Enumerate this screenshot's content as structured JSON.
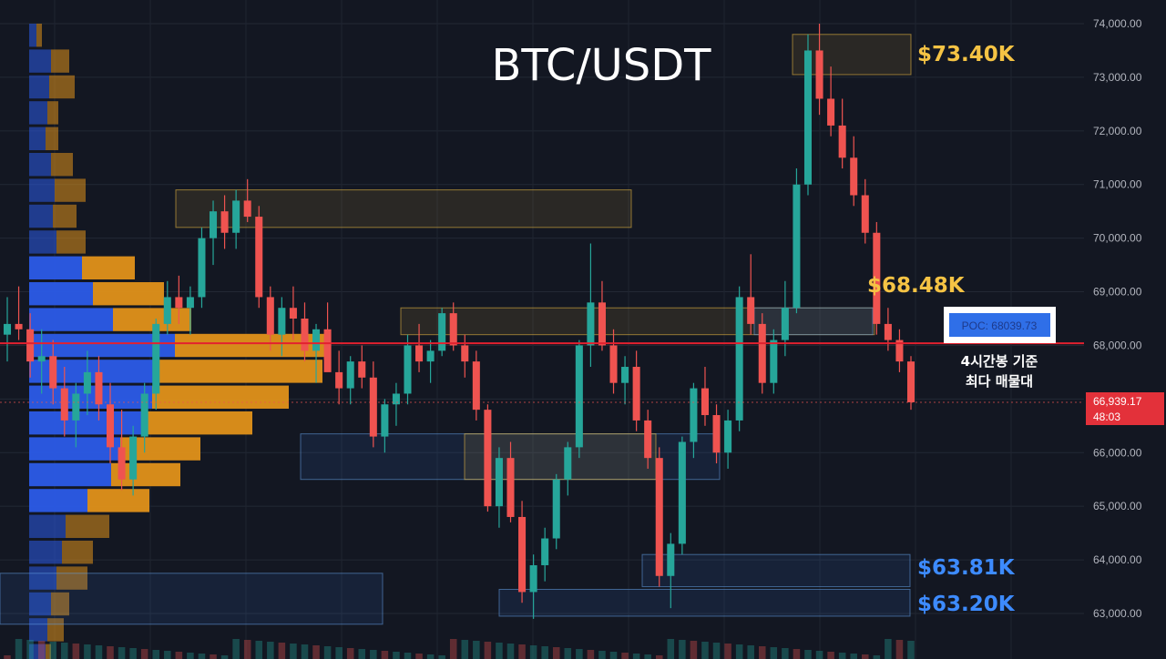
{
  "title": "BTC/USDT",
  "colors": {
    "background": "#131722",
    "bull": "#26a69a",
    "bear": "#ef5350",
    "level_gold": "#f5c344",
    "level_blue": "#3d8bff",
    "poc_line": "#e3212f",
    "vp_up": "#2b5be8",
    "vp_down": "#e0911a"
  },
  "price_axis": {
    "ticks": [
      "74,000.00",
      "73,000.00",
      "72,000.00",
      "71,000.00",
      "70,000.00",
      "69,000.00",
      "68,000.00",
      "67,000.00",
      "66,000.00",
      "65,000.00",
      "64,000.00",
      "63,000.00"
    ],
    "current_price": "66,939.17",
    "countdown": "48:03"
  },
  "levels": {
    "l1": "$73.40K",
    "l2": "$68.48K",
    "l3": "$63.81K",
    "l4": "$63.20K"
  },
  "poc": {
    "label": "POC: 68039.73",
    "note_line1": "4시간봉 기준",
    "note_line2": "최다 매물대"
  },
  "chart_data": {
    "type": "candlestick",
    "title": "BTC/USDT",
    "ylim": [
      62800,
      74200
    ],
    "y_ticks": [
      63000,
      64000,
      65000,
      66000,
      67000,
      68000,
      69000,
      70000,
      71000,
      72000,
      73000,
      74000
    ],
    "current_price": 66939.17,
    "poc": 68039.73,
    "annotated_levels": [
      73400,
      68480,
      63810,
      63200
    ],
    "candles_ohlc": [
      [
        68200,
        68900,
        67700,
        68400
      ],
      [
        68400,
        69100,
        68100,
        68300
      ],
      [
        68300,
        68600,
        67400,
        67700
      ],
      [
        67700,
        68300,
        67100,
        67800
      ],
      [
        67800,
        68100,
        66900,
        67200
      ],
      [
        67200,
        67600,
        66300,
        66600
      ],
      [
        66600,
        67300,
        66100,
        67100
      ],
      [
        67100,
        67900,
        66700,
        67500
      ],
      [
        67500,
        67800,
        66600,
        66900
      ],
      [
        66900,
        67300,
        65800,
        66100
      ],
      [
        66100,
        66800,
        65300,
        65500
      ],
      [
        65500,
        66500,
        65200,
        66300
      ],
      [
        66300,
        67300,
        66000,
        67100
      ],
      [
        67100,
        68500,
        66800,
        68400
      ],
      [
        68400,
        69200,
        68200,
        68900
      ],
      [
        68900,
        69300,
        68400,
        68700
      ],
      [
        68700,
        69100,
        68200,
        68900
      ],
      [
        68900,
        70200,
        68700,
        70000
      ],
      [
        70000,
        70700,
        69500,
        70500
      ],
      [
        70500,
        70800,
        69800,
        70100
      ],
      [
        70100,
        70900,
        69800,
        70700
      ],
      [
        70700,
        71100,
        70300,
        70400
      ],
      [
        70400,
        70600,
        68700,
        68900
      ],
      [
        68900,
        69100,
        67900,
        68200
      ],
      [
        68200,
        68900,
        67800,
        68700
      ],
      [
        68700,
        69100,
        68100,
        68500
      ],
      [
        68500,
        68800,
        67700,
        67900
      ],
      [
        67900,
        68400,
        67300,
        68300
      ],
      [
        68300,
        68800,
        67600,
        67500
      ],
      [
        67500,
        67900,
        66900,
        67200
      ],
      [
        67200,
        67800,
        66900,
        67700
      ],
      [
        67700,
        68000,
        67200,
        67400
      ],
      [
        67400,
        67700,
        66100,
        66300
      ],
      [
        66300,
        67000,
        66000,
        66900
      ],
      [
        66900,
        67300,
        66500,
        67100
      ],
      [
        67100,
        68200,
        66900,
        68000
      ],
      [
        68000,
        68400,
        67500,
        67700
      ],
      [
        67700,
        68100,
        67300,
        67900
      ],
      [
        67900,
        68700,
        67800,
        68600
      ],
      [
        68600,
        68800,
        67900,
        68000
      ],
      [
        68000,
        68200,
        67400,
        67700
      ],
      [
        67700,
        67900,
        66600,
        66800
      ],
      [
        66800,
        66900,
        64900,
        65000
      ],
      [
        65000,
        66100,
        64600,
        65900
      ],
      [
        65900,
        66200,
        64700,
        64800
      ],
      [
        64800,
        65100,
        63200,
        63400
      ],
      [
        63400,
        64100,
        62900,
        63900
      ],
      [
        63900,
        64600,
        63600,
        64400
      ],
      [
        64400,
        65600,
        64200,
        65500
      ],
      [
        65500,
        66200,
        65200,
        66100
      ],
      [
        66100,
        68100,
        65900,
        68000
      ],
      [
        68000,
        69900,
        67600,
        68800
      ],
      [
        68800,
        69200,
        67900,
        68000
      ],
      [
        68000,
        68300,
        67100,
        67300
      ],
      [
        67300,
        67800,
        66900,
        67600
      ],
      [
        67600,
        67900,
        66400,
        66600
      ],
      [
        66600,
        66800,
        65700,
        65900
      ],
      [
        65900,
        66100,
        63500,
        63700
      ],
      [
        63700,
        64500,
        63100,
        64300
      ],
      [
        64300,
        66300,
        64100,
        66200
      ],
      [
        66200,
        67300,
        65900,
        67200
      ],
      [
        67200,
        67600,
        66500,
        66700
      ],
      [
        66700,
        66900,
        65800,
        66000
      ],
      [
        66000,
        66800,
        65700,
        66600
      ],
      [
        66600,
        69100,
        66400,
        68900
      ],
      [
        68900,
        69700,
        68200,
        68400
      ],
      [
        68400,
        68600,
        67100,
        67300
      ],
      [
        67300,
        68300,
        67100,
        68100
      ],
      [
        68100,
        69200,
        67800,
        68700
      ],
      [
        68700,
        71300,
        68600,
        71000
      ],
      [
        71000,
        73800,
        70800,
        73500
      ],
      [
        73500,
        74000,
        72300,
        72600
      ],
      [
        72600,
        73200,
        71900,
        72100
      ],
      [
        72100,
        72600,
        71300,
        71500
      ],
      [
        71500,
        71900,
        70600,
        70800
      ],
      [
        70800,
        71100,
        69900,
        70100
      ],
      [
        70100,
        70300,
        68200,
        68400
      ],
      [
        68400,
        68700,
        67900,
        68100
      ],
      [
        68100,
        68300,
        67500,
        67700
      ],
      [
        67700,
        67800,
        66800,
        66939
      ]
    ]
  }
}
